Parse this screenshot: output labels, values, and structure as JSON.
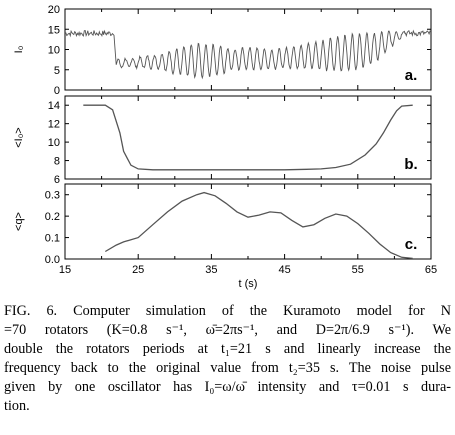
{
  "chart_data": [
    {
      "type": "line",
      "panel_label": "a.",
      "ylabel": "I₀",
      "ylim": [
        0,
        20
      ],
      "yticks": [
        0,
        5,
        10,
        15,
        20
      ],
      "xlim": [
        15,
        65
      ],
      "xticks": [
        15,
        25,
        35,
        45,
        55,
        65
      ],
      "description_series": {
        "name": "",
        "segments": [
          {
            "x_start": 15,
            "x_end": 21.5,
            "mean": 14,
            "amplitude": 0.7,
            "kind": "noise"
          },
          {
            "x_start": 22,
            "x_end": 61.5,
            "kind": "oscillation",
            "envelope": [
              [
                22,
                6.5,
                1.0
              ],
              [
                25,
                6.8,
                1.2
              ],
              [
                28,
                7.0,
                1.8
              ],
              [
                30,
                7.0,
                3.0
              ],
              [
                33,
                7.2,
                4.2
              ],
              [
                35,
                7.3,
                4.0
              ],
              [
                38,
                7.5,
                2.5
              ],
              [
                40,
                7.8,
                2.8
              ],
              [
                43,
                7.5,
                2.2
              ],
              [
                46,
                8.0,
                2.8
              ],
              [
                49,
                8.5,
                3.2
              ],
              [
                52,
                8.8,
                4.2
              ],
              [
                55,
                9.5,
                4.5
              ],
              [
                57.5,
                10.5,
                3.5
              ],
              [
                59.5,
                12.5,
                2.0
              ],
              [
                61,
                13.8,
                0.8
              ]
            ],
            "period": 1.0
          },
          {
            "x_start": 61.5,
            "x_end": 65,
            "mean": 14,
            "amplitude": 0.7,
            "kind": "noise"
          }
        ]
      }
    },
    {
      "type": "line",
      "panel_label": "b.",
      "ylabel": "<I₀>",
      "ylim": [
        6,
        15
      ],
      "yticks": [
        6,
        8,
        10,
        12,
        14
      ],
      "xlim": [
        15,
        65
      ],
      "x": [
        17.5,
        20.5,
        21.5,
        22.5,
        23.0,
        24.0,
        25.0,
        27.0,
        30.0,
        35.0,
        40.0,
        45.0,
        48.0,
        50.0,
        52.0,
        54.0,
        56.0,
        57.5,
        58.5,
        59.5,
        60.3,
        61.0,
        62.5
      ],
      "y": [
        14.0,
        14.0,
        13.5,
        11.0,
        9.0,
        7.5,
        7.1,
        7.0,
        7.0,
        7.0,
        7.0,
        7.0,
        7.05,
        7.1,
        7.25,
        7.6,
        8.6,
        9.8,
        11.0,
        12.4,
        13.4,
        13.9,
        14.0
      ]
    },
    {
      "type": "line",
      "panel_label": "c.",
      "ylabel": "<q>",
      "xlabel": "t (s)",
      "ylim": [
        0.0,
        0.35
      ],
      "yticks": [
        0.0,
        0.1,
        0.2,
        0.3
      ],
      "xlim": [
        15,
        65
      ],
      "xticks": [
        15,
        25,
        35,
        45,
        55,
        65
      ],
      "x": [
        20.5,
        22.0,
        23.0,
        25.0,
        27.0,
        29.0,
        31.0,
        33.0,
        34.0,
        35.5,
        37.0,
        38.5,
        40.0,
        41.5,
        43.0,
        44.5,
        46.0,
        47.5,
        49.0,
        50.5,
        52.0,
        53.5,
        55.0,
        56.5,
        58.0,
        59.5,
        61.0,
        62.5
      ],
      "y": [
        0.035,
        0.065,
        0.08,
        0.1,
        0.16,
        0.22,
        0.27,
        0.3,
        0.31,
        0.295,
        0.26,
        0.22,
        0.195,
        0.205,
        0.22,
        0.215,
        0.18,
        0.15,
        0.16,
        0.19,
        0.21,
        0.2,
        0.165,
        0.12,
        0.07,
        0.03,
        0.008,
        0.003
      ]
    }
  ],
  "caption": {
    "lines": [
      "FIG. 6. Computer simulation of the Kuramoto model for N",
      "=70 rotators (K=0.8 s⁻¹, ω̄=2πs⁻¹, and D=2π/6.9 s⁻¹). We",
      "double the rotators periods at t₁=21 s and linearly increase the",
      "frequency back to the original value from t₂=35 s. The noise pulse",
      "given by one oscillator has I₀=ω/ω̄ intensity and τ=0.01 s dura-",
      "tion."
    ]
  }
}
